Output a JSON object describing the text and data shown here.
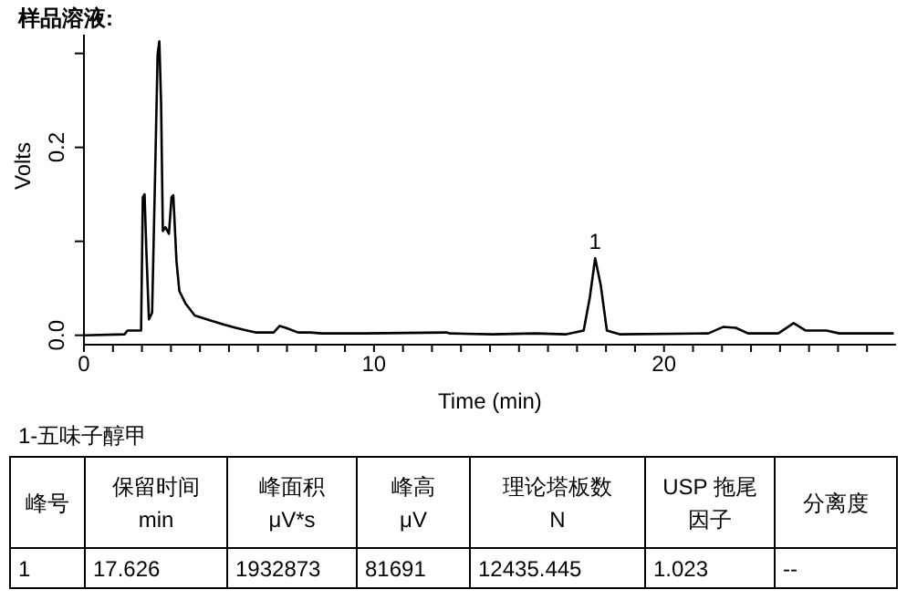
{
  "chart_data": {
    "type": "line",
    "title": "样品溶液:",
    "xlabel": "Time (min)",
    "ylabel": "Volts",
    "x": [
      0,
      1.4,
      1.5,
      1.97,
      2.03,
      2.09,
      2.15,
      2.24,
      2.35,
      2.45,
      2.54,
      2.6,
      2.66,
      2.72,
      2.81,
      2.93,
      3.02,
      3.08,
      3.19,
      3.29,
      3.5,
      3.82,
      4.34,
      4.86,
      5.49,
      5.91,
      6.54,
      6.75,
      6.96,
      7.38,
      7.8,
      8.2,
      9.68,
      12.5,
      12.62,
      14.09,
      15.56,
      16.6,
      17.23,
      17.44,
      17.626,
      17.82,
      18.03,
      18.49,
      21.53,
      22.05,
      22.47,
      22.9,
      23.94,
      24.47,
      24.89,
      25.6,
      26.04,
      27.92
    ],
    "series": [
      {
        "color": "#000000",
        "values": [
          0,
          0.001,
          0.005,
          0.005,
          0.147,
          0.15,
          0.092,
          0.017,
          0.024,
          0.166,
          0.299,
          0.313,
          0.247,
          0.111,
          0.115,
          0.108,
          0.147,
          0.149,
          0.079,
          0.047,
          0.034,
          0.021,
          0.016,
          0.011,
          0.006,
          0.003,
          0.003,
          0.01,
          0.008,
          0.003,
          0.003,
          0.002,
          0.002,
          0.003,
          0.002,
          0.001,
          0.002,
          0.001,
          0.005,
          0.04,
          0.082,
          0.053,
          0.005,
          0.001,
          0.002,
          0.009,
          0.008,
          0.002,
          0.002,
          0.013,
          0.005,
          0.005,
          0.002,
          0.002
        ]
      }
    ],
    "xlim": [
      0,
      28
    ],
    "xticks": [
      0,
      {
        "value": 1,
        "label": null
      },
      {
        "value": 2,
        "label": null
      },
      {
        "value": 3,
        "label": null
      },
      {
        "value": 4,
        "label": null
      },
      {
        "value": 5,
        "label": null
      },
      {
        "value": 6,
        "label": null
      },
      {
        "value": 7,
        "label": null
      },
      {
        "value": 8,
        "label": null
      },
      {
        "value": 9,
        "label": null
      },
      10,
      {
        "value": 11,
        "label": null
      },
      {
        "value": 12,
        "label": null
      },
      {
        "value": 13,
        "label": null
      },
      {
        "value": 14,
        "label": null
      },
      {
        "value": 15,
        "label": null
      },
      {
        "value": 16,
        "label": null
      },
      {
        "value": 17,
        "label": null
      },
      {
        "value": 18,
        "label": null
      },
      {
        "value": 19,
        "label": null
      },
      20,
      {
        "value": 21,
        "label": null
      },
      {
        "value": 22,
        "label": null
      },
      {
        "value": 23,
        "label": null
      },
      {
        "value": 24,
        "label": null
      },
      {
        "value": 25,
        "label": null
      },
      {
        "value": 26,
        "label": null
      },
      {
        "value": 27,
        "label": null
      }
    ],
    "ylim": [
      -0.01,
      0.32
    ],
    "yticks": [
      {
        "value": 0,
        "label": "0.0"
      },
      {
        "value": 0.1,
        "label": null
      },
      0.2,
      {
        "value": 0.3,
        "label": null
      }
    ],
    "grid": false,
    "legend": false,
    "marker": "none",
    "line_style": "solid",
    "annotations": [
      {
        "text": "1",
        "x": 17.626,
        "y": 0.082
      },
      "1-五味子醇甲",
      "峰号",
      "保留时间\nmin",
      "峰面积\nμV*s",
      "峰高\nμV",
      "理论塔板数\nN",
      "USP 拖尾因子",
      "分离度",
      "1",
      "17.626",
      "1932873",
      "81691",
      "12435.445",
      "1.023",
      "--"
    ]
  }
}
